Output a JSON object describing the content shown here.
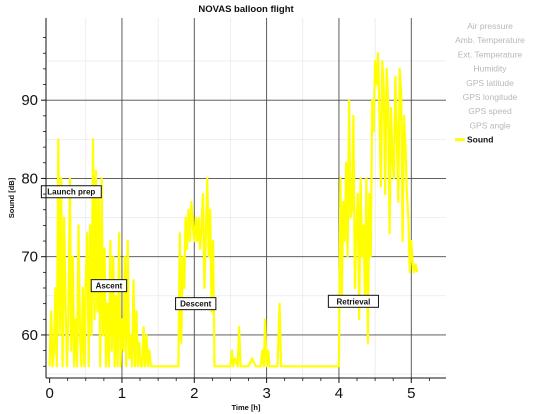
{
  "chart_data": {
    "type": "line",
    "title": "NOVAS balloon flight",
    "xlabel": "Time [h]",
    "ylabel": "Sound [dB]",
    "xlim": [
      -0.05,
      5.48
    ],
    "ylim": [
      54.5,
      100.5
    ],
    "x_ticks": [
      0,
      1,
      2,
      3,
      4,
      5
    ],
    "x_tick_labels": [
      "0",
      "1",
      "2",
      "3",
      "4",
      "5"
    ],
    "y_ticks": [
      60,
      70,
      80,
      90
    ],
    "y_tick_labels": [
      "60",
      "70",
      "80",
      "90"
    ],
    "grid": true,
    "legend_position": "right",
    "legend": [
      {
        "label": "Air pressure",
        "active": false
      },
      {
        "label": "Amb. Temperature",
        "active": false
      },
      {
        "label": "Ext. Temperature",
        "active": false
      },
      {
        "label": "Humidity",
        "active": false
      },
      {
        "label": "GPS latitude",
        "active": false
      },
      {
        "label": "GPS longitude",
        "active": false
      },
      {
        "label": "GPS speed",
        "active": false
      },
      {
        "label": "GPS angle",
        "active": false
      },
      {
        "label": "Sound",
        "active": true,
        "color": "#ffff00"
      }
    ],
    "annotations": [
      {
        "text": "Launch prep",
        "x": 0.3,
        "y": 78.3
      },
      {
        "text": "Ascent",
        "x": 0.82,
        "y": 66.3
      },
      {
        "text": "Descent",
        "x": 2.02,
        "y": 64.0
      },
      {
        "text": "Retrieval",
        "x": 4.2,
        "y": 64.3
      }
    ],
    "series": [
      {
        "name": "Sound",
        "color": "#ffff00",
        "x": [
          0.0,
          0.02,
          0.04,
          0.06,
          0.08,
          0.1,
          0.12,
          0.14,
          0.16,
          0.18,
          0.2,
          0.22,
          0.24,
          0.26,
          0.28,
          0.3,
          0.32,
          0.34,
          0.36,
          0.38,
          0.4,
          0.42,
          0.44,
          0.46,
          0.48,
          0.5,
          0.52,
          0.54,
          0.56,
          0.58,
          0.6,
          0.62,
          0.64,
          0.66,
          0.68,
          0.7,
          0.72,
          0.74,
          0.76,
          0.78,
          0.8,
          0.82,
          0.84,
          0.86,
          0.88,
          0.9,
          0.92,
          0.94,
          0.96,
          0.98,
          1.0,
          1.02,
          1.04,
          1.06,
          1.08,
          1.1,
          1.12,
          1.14,
          1.16,
          1.18,
          1.2,
          1.22,
          1.24,
          1.26,
          1.28,
          1.3,
          1.32,
          1.34,
          1.36,
          1.38,
          1.4,
          1.42,
          1.44,
          1.46,
          1.48,
          1.5,
          1.52,
          1.54,
          1.56,
          1.58,
          1.6,
          1.62,
          1.64,
          1.66,
          1.68,
          1.7,
          1.72,
          1.74,
          1.76,
          1.78,
          1.8,
          1.82,
          1.84,
          1.86,
          1.88,
          1.9,
          1.92,
          1.94,
          1.96,
          1.98,
          2.0,
          2.02,
          2.04,
          2.06,
          2.08,
          2.1,
          2.12,
          2.14,
          2.16,
          2.18,
          2.2,
          2.22,
          2.24,
          2.26,
          2.28,
          2.3,
          2.35,
          2.4,
          2.45,
          2.5,
          2.52,
          2.54,
          2.56,
          2.6,
          2.62,
          2.64,
          2.66,
          2.7,
          2.75,
          2.8,
          2.85,
          2.9,
          2.92,
          2.94,
          2.96,
          2.98,
          3.0,
          3.02,
          3.04,
          3.1,
          3.15,
          3.18,
          3.2,
          3.22,
          3.3,
          3.4,
          3.5,
          3.6,
          3.7,
          3.8,
          3.9,
          4.0,
          4.02,
          4.04,
          4.06,
          4.08,
          4.1,
          4.12,
          4.14,
          4.16,
          4.18,
          4.2,
          4.22,
          4.24,
          4.26,
          4.28,
          4.3,
          4.32,
          4.34,
          4.36,
          4.38,
          4.4,
          4.42,
          4.44,
          4.46,
          4.48,
          4.5,
          4.52,
          4.54,
          4.56,
          4.58,
          4.6,
          4.62,
          4.64,
          4.66,
          4.68,
          4.7,
          4.72,
          4.74,
          4.76,
          4.78,
          4.8,
          4.82,
          4.84,
          4.86,
          4.88,
          4.9,
          4.92,
          4.94,
          4.96,
          4.98,
          5.0,
          5.02,
          5.04,
          5.06,
          5.08
        ],
        "values": [
          56,
          63,
          56,
          58,
          66,
          56,
          85,
          60,
          80,
          56,
          75,
          64,
          56,
          62,
          80,
          58,
          70,
          56,
          62,
          56,
          74,
          60,
          56,
          66,
          56,
          67,
          73,
          56,
          74,
          60,
          85,
          62,
          81,
          63,
          78,
          56,
          80,
          60,
          71,
          56,
          64,
          56,
          72,
          58,
          70,
          56,
          65,
          56,
          73,
          56,
          62,
          58,
          70,
          56,
          72,
          57,
          60,
          56,
          67,
          56,
          63,
          56,
          59,
          56,
          56,
          61,
          56,
          60,
          56,
          58,
          56,
          56,
          56,
          56,
          56,
          56,
          56,
          56,
          56,
          56,
          56,
          56,
          56,
          56,
          56,
          56,
          56,
          56,
          56,
          56,
          73,
          59,
          70,
          66,
          75,
          71,
          76,
          72,
          77,
          74,
          72,
          75,
          72,
          75,
          71,
          74,
          78,
          66,
          73,
          80,
          70,
          76,
          63,
          72,
          56,
          56,
          56,
          56,
          56,
          56,
          58,
          56,
          57,
          56,
          61,
          56,
          56,
          56,
          56,
          57,
          56,
          56,
          56,
          58,
          56,
          62,
          56,
          58,
          56,
          56,
          56,
          64,
          56,
          56,
          56,
          56,
          56,
          56,
          56,
          56,
          56,
          56,
          80,
          65,
          77,
          72,
          82,
          70,
          90,
          75,
          76,
          88,
          66,
          73,
          78,
          62,
          80,
          70,
          74,
          65,
          80,
          59,
          78,
          70,
          90,
          86,
          95,
          92,
          96,
          88,
          79,
          95,
          91,
          78,
          94,
          90,
          73,
          89,
          82,
          80,
          93,
          86,
          77,
          94,
          91,
          72,
          88,
          84,
          78,
          75,
          68,
          72,
          69,
          68,
          69,
          68
        ]
      }
    ]
  }
}
